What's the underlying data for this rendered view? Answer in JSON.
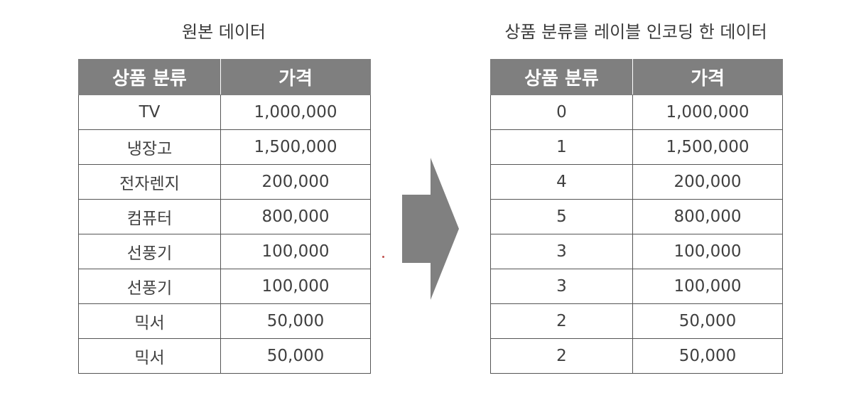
{
  "left_panel": {
    "title": "원본 데이터",
    "headers": [
      "상품 분류",
      "가격"
    ],
    "rows": [
      [
        "TV",
        "1,000,000"
      ],
      [
        "냉장고",
        "1,500,000"
      ],
      [
        "전자렌지",
        "200,000"
      ],
      [
        "컴퓨터",
        "800,000"
      ],
      [
        "선풍기",
        "100,000"
      ],
      [
        "선풍기",
        "100,000"
      ],
      [
        "믹서",
        "50,000"
      ],
      [
        "믹서",
        "50,000"
      ]
    ]
  },
  "right_panel": {
    "title": "상품 분류를 레이블 인코딩 한 데이터",
    "headers": [
      "상품 분류",
      "가격"
    ],
    "rows": [
      [
        "0",
        "1,000,000"
      ],
      [
        "1",
        "1,500,000"
      ],
      [
        "4",
        "200,000"
      ],
      [
        "5",
        "800,000"
      ],
      [
        "3",
        "100,000"
      ],
      [
        "3",
        "100,000"
      ],
      [
        "2",
        "50,000"
      ],
      [
        "2",
        "50,000"
      ]
    ]
  },
  "arrow": {
    "icon": "right-arrow-icon",
    "color": "#808080"
  },
  "colors": {
    "header_bg": "#7f7f7f",
    "header_text": "#ffffff",
    "cell_text": "#404040"
  }
}
